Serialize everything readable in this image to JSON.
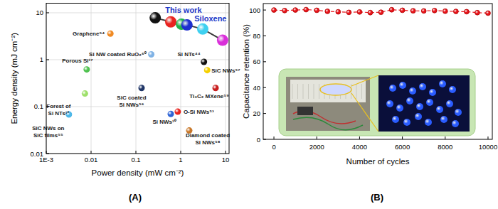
{
  "chart_data": [
    {
      "type": "scatter",
      "panel_label": "(A)",
      "xlabel": "Power density (mW cm⁻²)",
      "ylabel": "Energy density (mJ cm⁻²)",
      "log": true,
      "grid": true,
      "xlim": [
        0.001,
        12
      ],
      "ylim": [
        0.01,
        16
      ],
      "xticks": [
        {
          "value": 0.001,
          "label": "1E-3"
        },
        0.01,
        0.1,
        1,
        10
      ],
      "yticks": [
        0.01,
        0.1,
        1,
        10
      ],
      "series": [
        {
          "name": "This work",
          "type": "line",
          "line_style": "solid",
          "marker": "circle",
          "color": "#3a3a3a",
          "colors": [
            "#111111",
            "#e8231f",
            "#22b14c",
            "#1c2fcf",
            "#3fd0f0",
            "#d92fd9"
          ],
          "x": [
            0.27,
            0.6,
            1.04,
            1.38,
            3.1,
            8.6
          ],
          "values": [
            7.8,
            6.4,
            5.7,
            5.5,
            4.5,
            2.6
          ]
        },
        {
          "name": "Graphene⁵⁴",
          "marker": "circle",
          "color": "#f08a24",
          "x": [
            0.027
          ],
          "values": [
            3.6
          ]
        },
        {
          "name": "Si NW coated RuO₂⁶⁰",
          "marker": "circle",
          "color": "#7fb2e5",
          "x": [
            0.22
          ],
          "values": [
            1.3
          ]
        },
        {
          "name": "Porous Si¹⁷",
          "marker": "circle",
          "color": "#4fc24f",
          "x": [
            0.008
          ],
          "values": [
            0.62
          ]
        },
        {
          "name": "Forest of\nSi NTs¹²",
          "marker": "circle",
          "color": "#9ee06a",
          "x": [
            0.0073
          ],
          "values": [
            0.19
          ]
        },
        {
          "name": "SiC NWs on\nSiC films⁵⁵",
          "marker": "circle",
          "color": "#4fb8e8",
          "x": [
            0.0032
          ],
          "values": [
            0.068
          ]
        },
        {
          "name": "SiC coated\nSi NWs⁵⁶",
          "marker": "circle",
          "color": "#1f3566",
          "x": [
            0.134
          ],
          "values": [
            0.25
          ]
        },
        {
          "name": "Si NWs¹⁰",
          "marker": "circle",
          "color": "#2d63d6",
          "x": [
            0.6
          ],
          "values": [
            0.07
          ]
        },
        {
          "name": "O-Si NWs⁵³",
          "marker": "circle",
          "color": "#e8231f",
          "x": [
            0.86
          ],
          "values": [
            0.078
          ]
        },
        {
          "name": "Diamond coated\nSi NWs⁵⁸",
          "marker": "circle",
          "color": "#c8782a",
          "x": [
            1.55
          ],
          "values": [
            0.031
          ]
        },
        {
          "name": "Si NTs⁴⁴",
          "marker": "circle",
          "color": "#111111",
          "x": [
            3.3
          ],
          "values": [
            0.9
          ]
        },
        {
          "name": "SiC NWs⁵⁷",
          "marker": "circle",
          "color": "#f5d000",
          "x": [
            3.9
          ],
          "values": [
            0.6
          ]
        },
        {
          "name": "Ti₃C₂ MXene⁵⁹",
          "marker": "circle",
          "color": "#c81e1e",
          "x": [
            6.0
          ],
          "values": [
            0.25
          ]
        }
      ],
      "annotations": [
        {
          "text": "Siloxene",
          "x": 8.6,
          "y": 2.6
        }
      ]
    },
    {
      "type": "line",
      "panel_label": "(B)",
      "xlabel": "Number of cycles",
      "ylabel": "Capacitance retention (%)",
      "grid": false,
      "xlim": [
        -500,
        10200
      ],
      "ylim": [
        0,
        105
      ],
      "xticks": [
        0,
        2000,
        4000,
        6000,
        8000,
        10000
      ],
      "yticks": [
        0,
        20,
        40,
        60,
        80,
        100
      ],
      "series": [
        {
          "line_style": "dashed",
          "marker": "circle",
          "color": "#e8141b",
          "x": [
            0,
            500,
            1000,
            1500,
            2000,
            2500,
            3000,
            3500,
            4000,
            4500,
            5000,
            5500,
            6000,
            6500,
            7000,
            7500,
            8000,
            8500,
            9000,
            9500,
            10000
          ],
          "values": [
            100,
            99.6,
            100,
            100.3,
            99.8,
            99,
            98.6,
            98.2,
            98.5,
            98,
            98.3,
            100.2,
            99.8,
            99.4,
            99.3,
            99.6,
            99.1,
            98.9,
            98.7,
            98,
            97.6
          ]
        }
      ]
    }
  ]
}
